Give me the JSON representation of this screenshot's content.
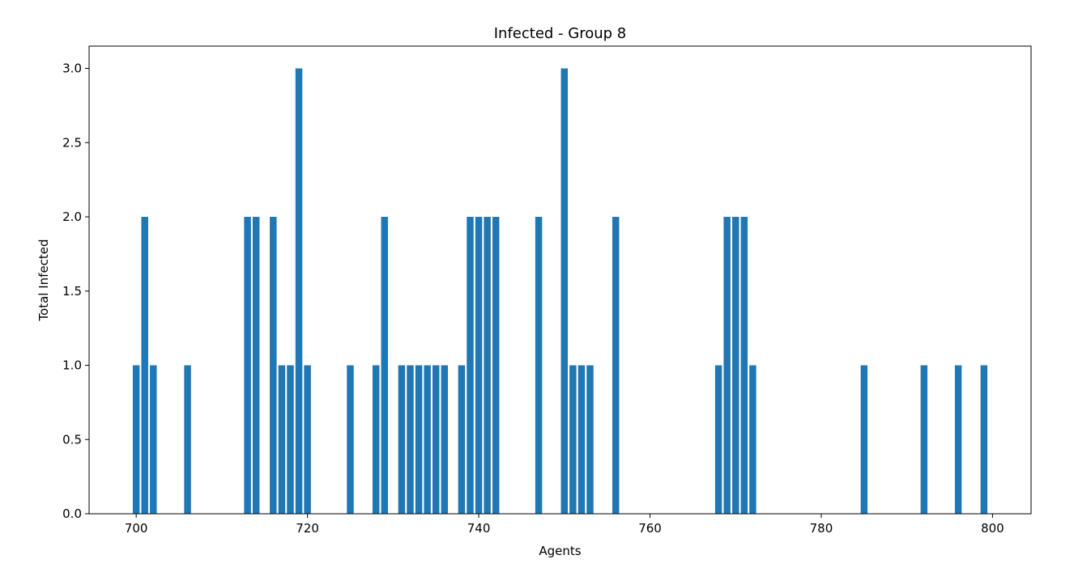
{
  "chart_data": {
    "type": "bar",
    "title": "Infected - Group 8",
    "xlabel": "Agents",
    "ylabel": "Total Infected",
    "xlim": [
      694.5,
      804.5
    ],
    "ylim": [
      0,
      3.15
    ],
    "xticks": [
      700,
      720,
      740,
      760,
      780,
      800
    ],
    "yticks": [
      0.0,
      0.5,
      1.0,
      1.5,
      2.0,
      2.5,
      3.0
    ],
    "xtick_labels": [
      "700",
      "720",
      "740",
      "760",
      "780",
      "800"
    ],
    "ytick_labels": [
      "0.0",
      "0.5",
      "1.0",
      "1.5",
      "2.0",
      "2.5",
      "3.0"
    ],
    "bar_color": "#1f77b4",
    "grid": false,
    "bars": [
      {
        "x": 700,
        "y": 1
      },
      {
        "x": 701,
        "y": 2
      },
      {
        "x": 702,
        "y": 1
      },
      {
        "x": 706,
        "y": 1
      },
      {
        "x": 713,
        "y": 2
      },
      {
        "x": 714,
        "y": 2
      },
      {
        "x": 716,
        "y": 2
      },
      {
        "x": 717,
        "y": 1
      },
      {
        "x": 718,
        "y": 1
      },
      {
        "x": 719,
        "y": 3
      },
      {
        "x": 720,
        "y": 1
      },
      {
        "x": 725,
        "y": 1
      },
      {
        "x": 728,
        "y": 1
      },
      {
        "x": 729,
        "y": 2
      },
      {
        "x": 731,
        "y": 1
      },
      {
        "x": 732,
        "y": 1
      },
      {
        "x": 733,
        "y": 1
      },
      {
        "x": 734,
        "y": 1
      },
      {
        "x": 735,
        "y": 1
      },
      {
        "x": 736,
        "y": 1
      },
      {
        "x": 738,
        "y": 1
      },
      {
        "x": 739,
        "y": 2
      },
      {
        "x": 740,
        "y": 2
      },
      {
        "x": 741,
        "y": 2
      },
      {
        "x": 742,
        "y": 2
      },
      {
        "x": 747,
        "y": 2
      },
      {
        "x": 750,
        "y": 3
      },
      {
        "x": 751,
        "y": 1
      },
      {
        "x": 752,
        "y": 1
      },
      {
        "x": 753,
        "y": 1
      },
      {
        "x": 756,
        "y": 2
      },
      {
        "x": 768,
        "y": 1
      },
      {
        "x": 769,
        "y": 2
      },
      {
        "x": 770,
        "y": 2
      },
      {
        "x": 771,
        "y": 2
      },
      {
        "x": 772,
        "y": 1
      },
      {
        "x": 785,
        "y": 1
      },
      {
        "x": 792,
        "y": 1
      },
      {
        "x": 796,
        "y": 1
      },
      {
        "x": 799,
        "y": 1
      }
    ]
  }
}
